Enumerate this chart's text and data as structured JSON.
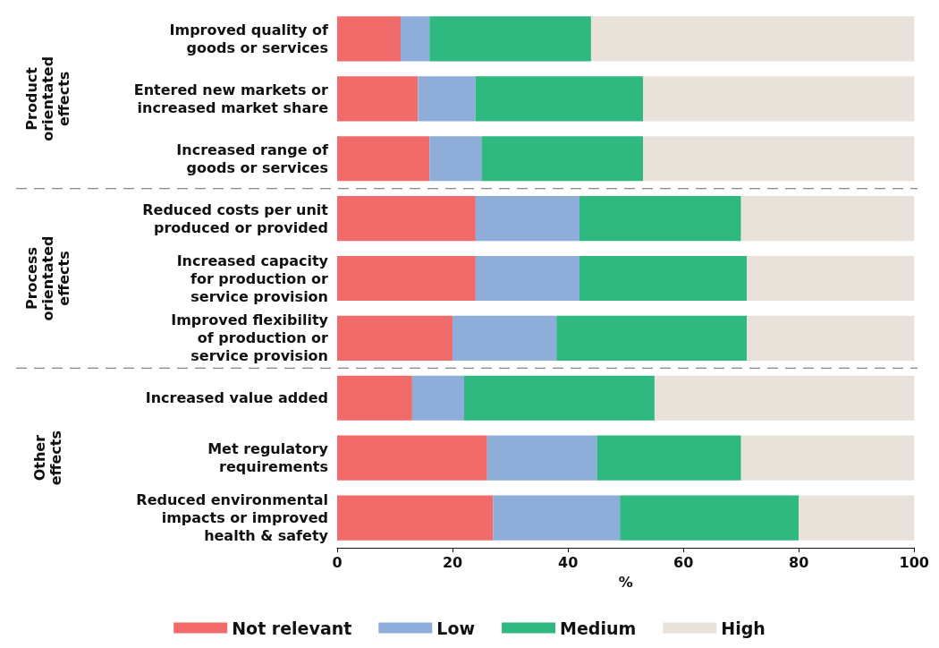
{
  "chart_data": {
    "type": "bar",
    "orientation": "horizontal",
    "stacked": true,
    "categories": [
      "Improved quality of\ngoods or services",
      "Entered new markets or\nincreased market share",
      "Increased range of\ngoods or services",
      "Reduced costs per unit\nproduced or provided",
      "Increased capacity\nfor production or\nservice provision",
      "Improved flexibility\nof production or\nservice provision",
      "Increased value added",
      "Met regulatory\nrequirements",
      "Reduced environmental\nimpacts or improved\nhealth & safety"
    ],
    "series": [
      {
        "name": "Not relevant",
        "color": "#f26b6b",
        "values": [
          11,
          14,
          16,
          24,
          24,
          20,
          13,
          26,
          27
        ]
      },
      {
        "name": "Low",
        "color": "#8eadd9",
        "values": [
          5,
          10,
          9,
          18,
          18,
          18,
          9,
          19,
          22
        ]
      },
      {
        "name": "Medium",
        "color": "#2fb880",
        "values": [
          28,
          29,
          28,
          28,
          29,
          33,
          33,
          25,
          31
        ]
      },
      {
        "name": "High",
        "color": "#e9e2da",
        "values": [
          56,
          47,
          47,
          30,
          29,
          29,
          45,
          30,
          20
        ]
      }
    ],
    "xlabel": "%",
    "xlim": [
      0,
      100
    ],
    "xticks": [
      0,
      20,
      40,
      60,
      80,
      100
    ],
    "grid": false,
    "legend": "bottom",
    "annotations": [
      "Product\norientated\neffects",
      "Process\norientated\neffects",
      "Other\neffects"
    ]
  }
}
